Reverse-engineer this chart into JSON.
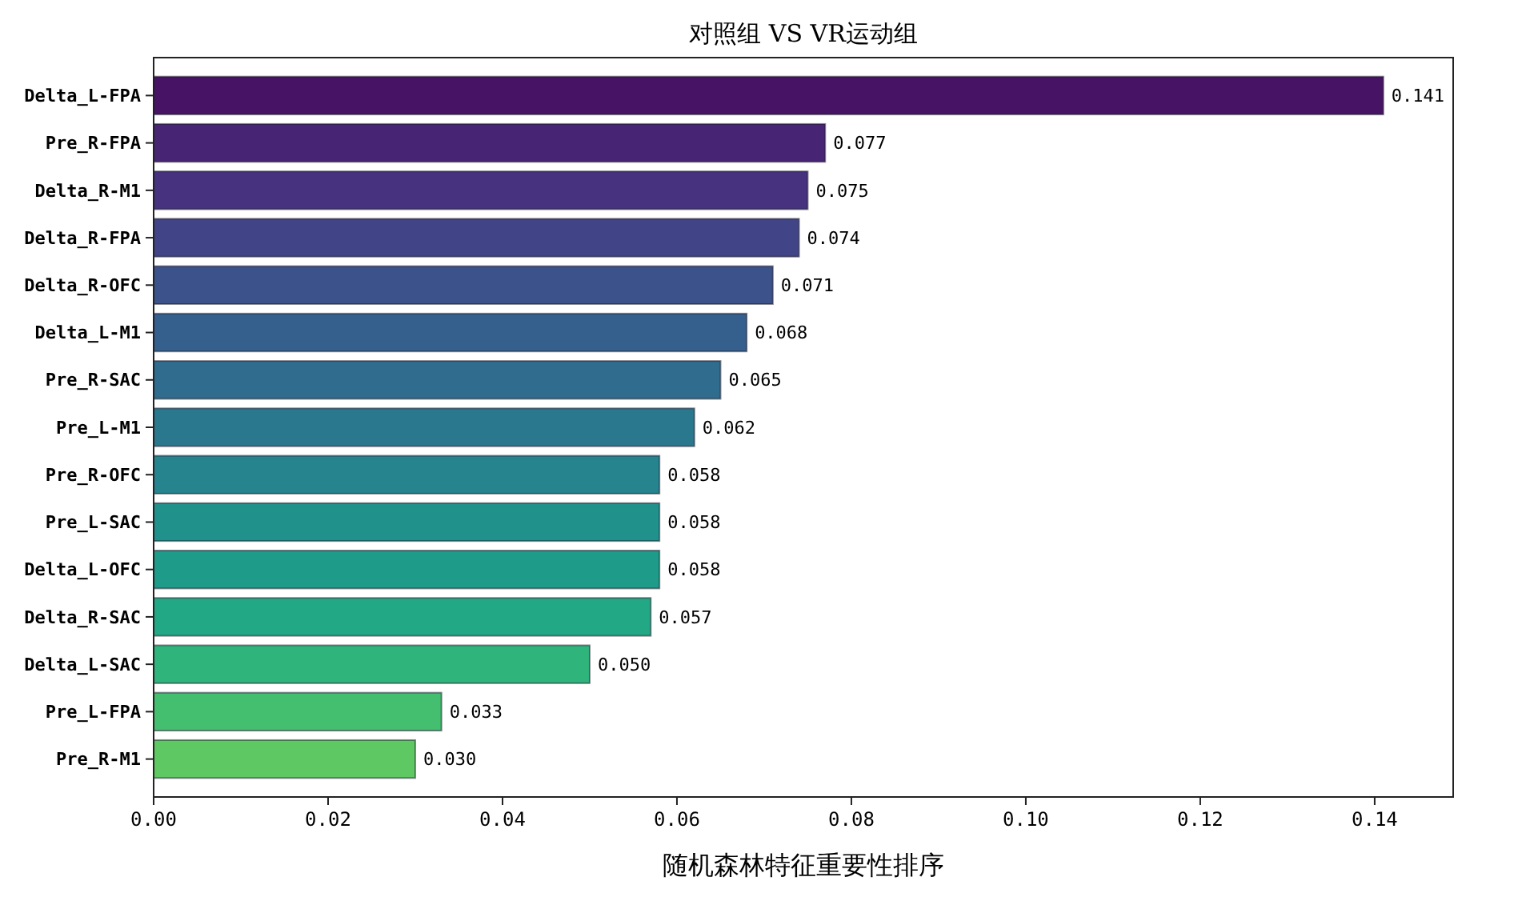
{
  "chart_data": {
    "type": "bar",
    "orientation": "horizontal",
    "title": "对照组 VS VR运动组",
    "xlabel": "随机森林特征重要性排序",
    "categories": [
      "Delta_L-FPA",
      "Pre_R-FPA",
      "Delta_R-M1",
      "Delta_R-FPA",
      "Delta_R-OFC",
      "Delta_L-M1",
      "Pre_R-SAC",
      "Pre_L-M1",
      "Pre_R-OFC",
      "Pre_L-SAC",
      "Delta_L-OFC",
      "Delta_R-SAC",
      "Delta_L-SAC",
      "Pre_L-FPA",
      "Pre_R-M1"
    ],
    "values": [
      0.141,
      0.077,
      0.075,
      0.074,
      0.071,
      0.068,
      0.065,
      0.062,
      0.058,
      0.058,
      0.058,
      0.057,
      0.05,
      0.033,
      0.03
    ],
    "colors": [
      "#471365",
      "#482475",
      "#46327e",
      "#414487",
      "#3b528b",
      "#355f8d",
      "#2f6c8e",
      "#2a788e",
      "#25848e",
      "#21918c",
      "#1e9c89",
      "#22a884",
      "#2fb47c",
      "#44bf70",
      "#5ec962"
    ],
    "xlim": [
      0,
      0.149
    ],
    "xticks": [
      {
        "value": 0,
        "label": "0.00"
      },
      {
        "value": 0.02,
        "label": "0.02"
      },
      {
        "value": 0.04,
        "label": "0.04"
      },
      {
        "value": 0.06,
        "label": "0.06"
      },
      {
        "value": 0.08,
        "label": "0.08"
      },
      {
        "value": 0.1,
        "label": "0.10"
      },
      {
        "value": 0.12,
        "label": "0.12"
      },
      {
        "value": 0.14,
        "label": "0.14"
      }
    ],
    "value_labels": [
      "0.141",
      "0.077",
      "0.075",
      "0.074",
      "0.071",
      "0.068",
      "0.065",
      "0.062",
      "0.058",
      "0.058",
      "0.058",
      "0.057",
      "0.050",
      "0.033",
      "0.030"
    ]
  }
}
